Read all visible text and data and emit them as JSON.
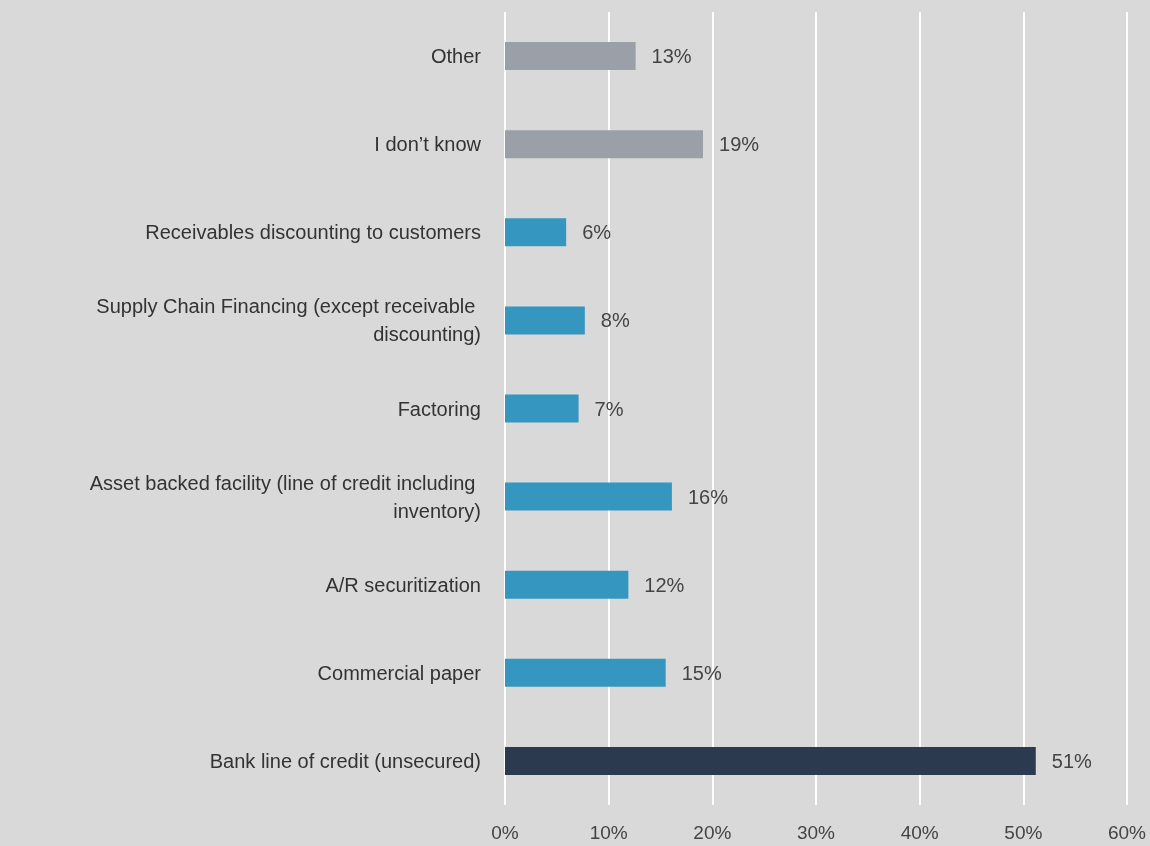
{
  "chart_data": {
    "type": "bar",
    "orientation": "horizontal",
    "categories": [
      "Other",
      "I don’t know",
      "Receivables discounting to customers",
      "Supply Chain Financing (except receivable discounting)",
      "Factoring",
      "Asset backed facility (line of credit including inventory)",
      "A/R securitization",
      "Commercial paper",
      "Bank line of credit (unsecured)"
    ],
    "values": [
      12.6,
      19.1,
      5.9,
      7.7,
      7.1,
      16.1,
      11.9,
      15.5,
      51.2
    ],
    "value_labels": [
      "13%",
      "19%",
      "6%",
      "8%",
      "7%",
      "16%",
      "12%",
      "15%",
      "51%"
    ],
    "colors": [
      "#9ba0a8",
      "#9ba0a8",
      "#3597bf",
      "#3597bf",
      "#3597bf",
      "#3597bf",
      "#3597bf",
      "#3597bf",
      "#2b3a4e"
    ],
    "xlim": [
      0,
      60
    ],
    "xticks": [
      {
        "value": 0,
        "label": "0%"
      },
      {
        "value": 10,
        "label": "10%"
      },
      {
        "value": 20,
        "label": "20%"
      },
      {
        "value": 30,
        "label": "30%"
      },
      {
        "value": 40,
        "label": "40%"
      },
      {
        "value": 50,
        "label": "50%"
      },
      {
        "value": 60,
        "label": "60%"
      }
    ],
    "grid": "x"
  }
}
